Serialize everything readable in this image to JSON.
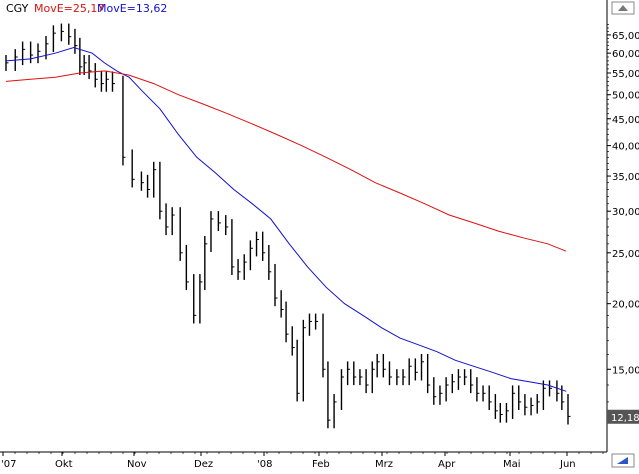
{
  "chart_data": {
    "type": "line",
    "title": "CGY",
    "indicators": [
      {
        "label": "MovE=25,17",
        "color": "#dd1111"
      },
      {
        "label": "MovE=13,62",
        "color": "#1111cc"
      }
    ],
    "x_tick_labels": [
      "'07",
      "Okt",
      "Nov",
      "Dez",
      "'08",
      "Feb",
      "Mrz",
      "Apr",
      "Mai",
      "Jun"
    ],
    "y_scale": "log",
    "y_tick_labels": [
      "65,00",
      "60,00",
      "55,00",
      "50,00",
      "45,00",
      "40,00",
      "35,00",
      "30,00",
      "25,00",
      "20,00",
      "15,00"
    ],
    "y_ticks": [
      65,
      60,
      55,
      50,
      45,
      40,
      35,
      30,
      25,
      20,
      15
    ],
    "ylim": [
      11,
      70
    ],
    "last_price_label": "12,18",
    "last_price": 12.18,
    "series": [
      {
        "name": "CGY",
        "style": "ohlc-bars",
        "color": "#000000",
        "points": [
          [
            0,
            57.5
          ],
          [
            1.5,
            59
          ],
          [
            2.7,
            61
          ],
          [
            4,
            59.5
          ],
          [
            5.2,
            60.5
          ],
          [
            6.5,
            62.5
          ],
          [
            7.7,
            65.5
          ],
          [
            9,
            66
          ],
          [
            10.2,
            64.5
          ],
          [
            11.2,
            62
          ],
          [
            12,
            56.5
          ],
          [
            12.7,
            57.5
          ],
          [
            13.5,
            55.5
          ],
          [
            14.5,
            53.5
          ],
          [
            15.5,
            52.5
          ],
          [
            16.3,
            53.5
          ],
          [
            17.3,
            52.5
          ],
          [
            19,
            38
          ],
          [
            20.5,
            34.5
          ],
          [
            22,
            34
          ],
          [
            23,
            33
          ],
          [
            24,
            36
          ],
          [
            25,
            30
          ],
          [
            26,
            28
          ],
          [
            27,
            29.5
          ],
          [
            28.3,
            25
          ],
          [
            29.3,
            22
          ],
          [
            30.5,
            19
          ],
          [
            31.5,
            22
          ],
          [
            32.3,
            26
          ],
          [
            33.3,
            29
          ],
          [
            34.5,
            28.5
          ],
          [
            35.7,
            28
          ],
          [
            36.7,
            23.5
          ],
          [
            37.7,
            23
          ],
          [
            38.7,
            24
          ],
          [
            39.7,
            25.5
          ],
          [
            40.7,
            26.5
          ],
          [
            41.7,
            25
          ],
          [
            42.7,
            23
          ],
          [
            43.7,
            20.5
          ],
          [
            44.7,
            19.5
          ],
          [
            45.5,
            17.5
          ],
          [
            46.5,
            16.5
          ],
          [
            47.3,
            13.5
          ],
          [
            48.3,
            18
          ],
          [
            49.3,
            18.5
          ],
          [
            50.3,
            18.5
          ],
          [
            51.5,
            15
          ],
          [
            52.3,
            12
          ],
          [
            53.3,
            13
          ],
          [
            54.5,
            14.5
          ],
          [
            55.5,
            15
          ],
          [
            56.5,
            14.5
          ],
          [
            57.5,
            14.5
          ],
          [
            58.5,
            14
          ],
          [
            59.5,
            15
          ],
          [
            60.3,
            15.5
          ],
          [
            61.3,
            15
          ],
          [
            62.3,
            14.5
          ],
          [
            63.5,
            14.5
          ],
          [
            64.5,
            14.5
          ],
          [
            65.5,
            15.2
          ],
          [
            66.5,
            14.8
          ],
          [
            67.5,
            15.5
          ],
          [
            68.5,
            14
          ],
          [
            69.5,
            13.3
          ],
          [
            70.5,
            13.5
          ],
          [
            71.5,
            14
          ],
          [
            72.5,
            14.2
          ],
          [
            73.5,
            14.5
          ],
          [
            74.5,
            14.5
          ],
          [
            75.5,
            14
          ],
          [
            76.5,
            13.5
          ],
          [
            77.5,
            13.5
          ],
          [
            78.5,
            13
          ],
          [
            79.5,
            12.5
          ],
          [
            80.3,
            12.3
          ],
          [
            81.3,
            12.5
          ],
          [
            82.3,
            13.5
          ],
          [
            83.3,
            13
          ],
          [
            84.3,
            12.7
          ],
          [
            85.3,
            12.8
          ],
          [
            86.3,
            13
          ],
          [
            87.3,
            13.8
          ],
          [
            88.3,
            13.8
          ],
          [
            89.5,
            13.5
          ],
          [
            90.3,
            13
          ],
          [
            91.3,
            12.2
          ]
        ]
      },
      {
        "name": "MovE=13,62",
        "style": "line",
        "color": "#1111cc",
        "points": [
          [
            0,
            58
          ],
          [
            4,
            58.5
          ],
          [
            8,
            60
          ],
          [
            11,
            61.5
          ],
          [
            14,
            60
          ],
          [
            16,
            57.5
          ],
          [
            18,
            55.5
          ],
          [
            20,
            54
          ],
          [
            22,
            51
          ],
          [
            25,
            47
          ],
          [
            28,
            42
          ],
          [
            31,
            38
          ],
          [
            34,
            35.5
          ],
          [
            37,
            33
          ],
          [
            40,
            31
          ],
          [
            43,
            29
          ],
          [
            46,
            26
          ],
          [
            49,
            23.5
          ],
          [
            52,
            21.5
          ],
          [
            55,
            20
          ],
          [
            58,
            19
          ],
          [
            61,
            18
          ],
          [
            64,
            17.2
          ],
          [
            67,
            16.7
          ],
          [
            70,
            16.2
          ],
          [
            73,
            15.6
          ],
          [
            76,
            15.2
          ],
          [
            79,
            14.8
          ],
          [
            82,
            14.4
          ],
          [
            85,
            14.2
          ],
          [
            88,
            14
          ],
          [
            91,
            13.62
          ]
        ]
      },
      {
        "name": "MovE=25,17",
        "style": "line",
        "color": "#dd1111",
        "points": [
          [
            0,
            53
          ],
          [
            4,
            53.5
          ],
          [
            8,
            54
          ],
          [
            12,
            55
          ],
          [
            16,
            55.5
          ],
          [
            20,
            54.5
          ],
          [
            24,
            52.5
          ],
          [
            28,
            50
          ],
          [
            32,
            48
          ],
          [
            36,
            46
          ],
          [
            40,
            44
          ],
          [
            44,
            42
          ],
          [
            48,
            40
          ],
          [
            52,
            38
          ],
          [
            56,
            36
          ],
          [
            60,
            34
          ],
          [
            64,
            32.5
          ],
          [
            68,
            31
          ],
          [
            72,
            29.5
          ],
          [
            76,
            28.5
          ],
          [
            80,
            27.5
          ],
          [
            84,
            26.7
          ],
          [
            88,
            26
          ],
          [
            91,
            25.17
          ]
        ]
      }
    ],
    "grid": false,
    "legend_position": "top-left"
  }
}
